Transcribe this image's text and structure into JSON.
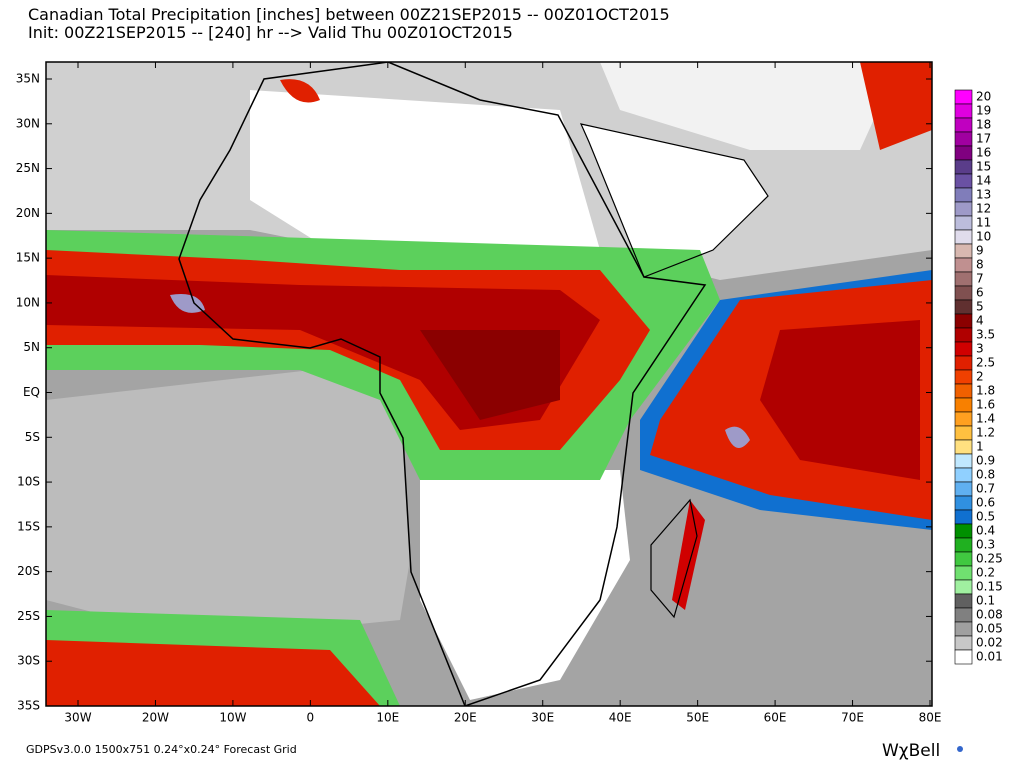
{
  "header": {
    "line1": "Canadian Total Precipitation [inches] between 00Z21SEP2015 -- 00Z01OCT2015",
    "line2": "Init: 00Z21SEP2015 -- [240] hr --> Valid Thu 00Z01OCT2015"
  },
  "map": {
    "lat_labels": [
      "35N",
      "30N",
      "25N",
      "20N",
      "15N",
      "10N",
      "5N",
      "EQ",
      "5S",
      "10S",
      "15S",
      "20S",
      "25S",
      "30S",
      "35S"
    ],
    "lon_labels": [
      "30W",
      "20W",
      "10W",
      "0",
      "10E",
      "20E",
      "30E",
      "40E",
      "50E",
      "60E",
      "70E",
      "80E"
    ]
  },
  "colorbar": {
    "levels": [
      20,
      19,
      18,
      17,
      16,
      15,
      14,
      13,
      12,
      11,
      10,
      9,
      8,
      7,
      6,
      5,
      4,
      3.5,
      3,
      2.5,
      2,
      1.8,
      1.6,
      1.4,
      1.2,
      1,
      0.9,
      0.8,
      0.7,
      0.6,
      0.5,
      0.4,
      0.3,
      0.25,
      0.2,
      0.15,
      0.1,
      0.08,
      0.05,
      0.02,
      0.01
    ],
    "colors": [
      "#ff00ff",
      "#e000e0",
      "#c000c0",
      "#a000a0",
      "#800080",
      "#5a3d8a",
      "#6a51a3",
      "#807dba",
      "#9e9ac8",
      "#bcbddc",
      "#e0dcec",
      "#d8b8b0",
      "#c09090",
      "#a07070",
      "#805050",
      "#603030",
      "#8b0000",
      "#b00000",
      "#d00000",
      "#e02000",
      "#f04000",
      "#f06000",
      "#f88000",
      "#ffa020",
      "#ffc040",
      "#ffe080",
      "#c0e8ff",
      "#90d0ff",
      "#60b0f0",
      "#3090e0",
      "#1070d0",
      "#009000",
      "#20b020",
      "#40c840",
      "#70e070",
      "#a0f0a0",
      "#606060",
      "#808080",
      "#a0a0a0",
      "#c8c8c8",
      "#ffffff"
    ]
  },
  "footer": {
    "grid": "GDPSv3.0.0 1500x751 0.24°x0.24° Forecast Grid",
    "logo": "WχBell"
  }
}
